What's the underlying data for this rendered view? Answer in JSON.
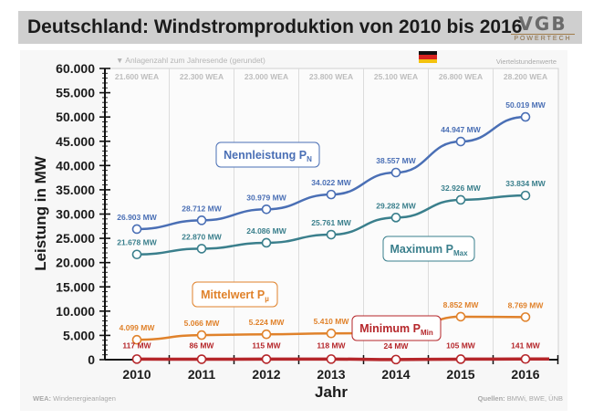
{
  "header": {
    "title": "Deutschland: Windstromproduktion von 2010 bis 2016",
    "logo_main": "VGB",
    "logo_sub": "POWERTECH"
  },
  "annotations": {
    "wea_note": "▼ Anlagenzahl zum Jahresende (gerundet)",
    "quarter_note": "Viertelstundenwerte",
    "footnote_key": "WEA:",
    "footnote_text": "Windenergieanlagen",
    "sources_key": "Quellen:",
    "sources_text": "BMWi, BWE, ÜNB",
    "flag": "germany-flag"
  },
  "chart_data": {
    "type": "line",
    "title": "Deutschland: Windstromproduktion von 2010 bis 2016",
    "xlabel": "Jahr",
    "ylabel": "Leistung in MW",
    "ylim": [
      0,
      60000
    ],
    "y_ticks": [
      "0",
      "5.000",
      "10.000",
      "15.000",
      "20.000",
      "25.000",
      "30.000",
      "35.000",
      "40.000",
      "45.000",
      "50.000",
      "55.000",
      "60.000"
    ],
    "y_tick_values": [
      0,
      5000,
      10000,
      15000,
      20000,
      25000,
      30000,
      35000,
      40000,
      45000,
      50000,
      55000,
      60000
    ],
    "categories": [
      "2010",
      "2011",
      "2012",
      "2013",
      "2014",
      "2015",
      "2016"
    ],
    "wea_counts": [
      "21.600 WEA",
      "22.300 WEA",
      "23.000 WEA",
      "23.800 WEA",
      "25.100 WEA",
      "26.800 WEA",
      "28.200 WEA"
    ],
    "grid": true,
    "series": [
      {
        "name": "Nennleistung P",
        "sub": "N",
        "color": "#4a6fb5",
        "values": [
          26903,
          28712,
          30979,
          34022,
          38557,
          44947,
          50019
        ],
        "labels": [
          "26.903 MW",
          "28.712 MW",
          "30.979 MW",
          "34.022 MW",
          "38.557 MW",
          "44.947 MW",
          "50.019 MW"
        ]
      },
      {
        "name": "Maximum P",
        "sub": "Max",
        "color": "#3a7f8c",
        "values": [
          21678,
          22870,
          24086,
          25761,
          29282,
          32926,
          33834
        ],
        "labels": [
          "21.678 MW",
          "22.870 MW",
          "24.086 MW",
          "25.761 MW",
          "29.282 MW",
          "32.926 MW",
          "33.834 MW"
        ]
      },
      {
        "name": "Mittelwert P",
        "sub": "µ",
        "color": "#e0822b",
        "values": [
          4099,
          5066,
          5224,
          5410,
          5500,
          8852,
          8769
        ],
        "labels": [
          "4.099 MW",
          "5.066 MW",
          "5.224 MW",
          "5.410 MW",
          "",
          "8.852 MW",
          "8.769 MW"
        ]
      },
      {
        "name": "Minimum P",
        "sub": "Min",
        "color": "#b5262a",
        "values": [
          117,
          86,
          115,
          118,
          24,
          105,
          141
        ],
        "labels": [
          "117 MW",
          "86 MW",
          "115 MW",
          "118 MW",
          "24 MW",
          "105 MW",
          "141 MW"
        ]
      }
    ]
  }
}
